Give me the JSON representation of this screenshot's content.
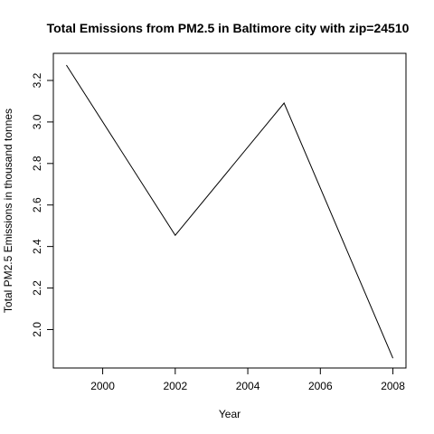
{
  "chart_data": {
    "type": "line",
    "title": "Total Emissions from PM2.5 in Baltimore city with zip=24510",
    "xlabel": "Year",
    "ylabel": "Total PM2.5 Emissions in thousand tonnes",
    "xlim": [
      1998.64,
      2008.36
    ],
    "ylim": [
      1.8147,
      3.3306
    ],
    "xticks": [
      2000,
      2002,
      2004,
      2006,
      2008
    ],
    "yticks": [
      2.0,
      2.2,
      2.4,
      2.6,
      2.8,
      3.0,
      3.2
    ],
    "xtick_labels": [
      "2000",
      "2002",
      "2004",
      "2006",
      "2008"
    ],
    "ytick_labels": [
      "2.0",
      "2.2",
      "2.4",
      "2.6",
      "2.8",
      "3.0",
      "3.2"
    ],
    "grid": false,
    "legend": "none",
    "x": [
      1999,
      2002,
      2005,
      2008
    ],
    "series": [
      {
        "values": [
          3.274,
          2.454,
          3.091,
          1.862
        ],
        "color": "#000000"
      }
    ]
  }
}
